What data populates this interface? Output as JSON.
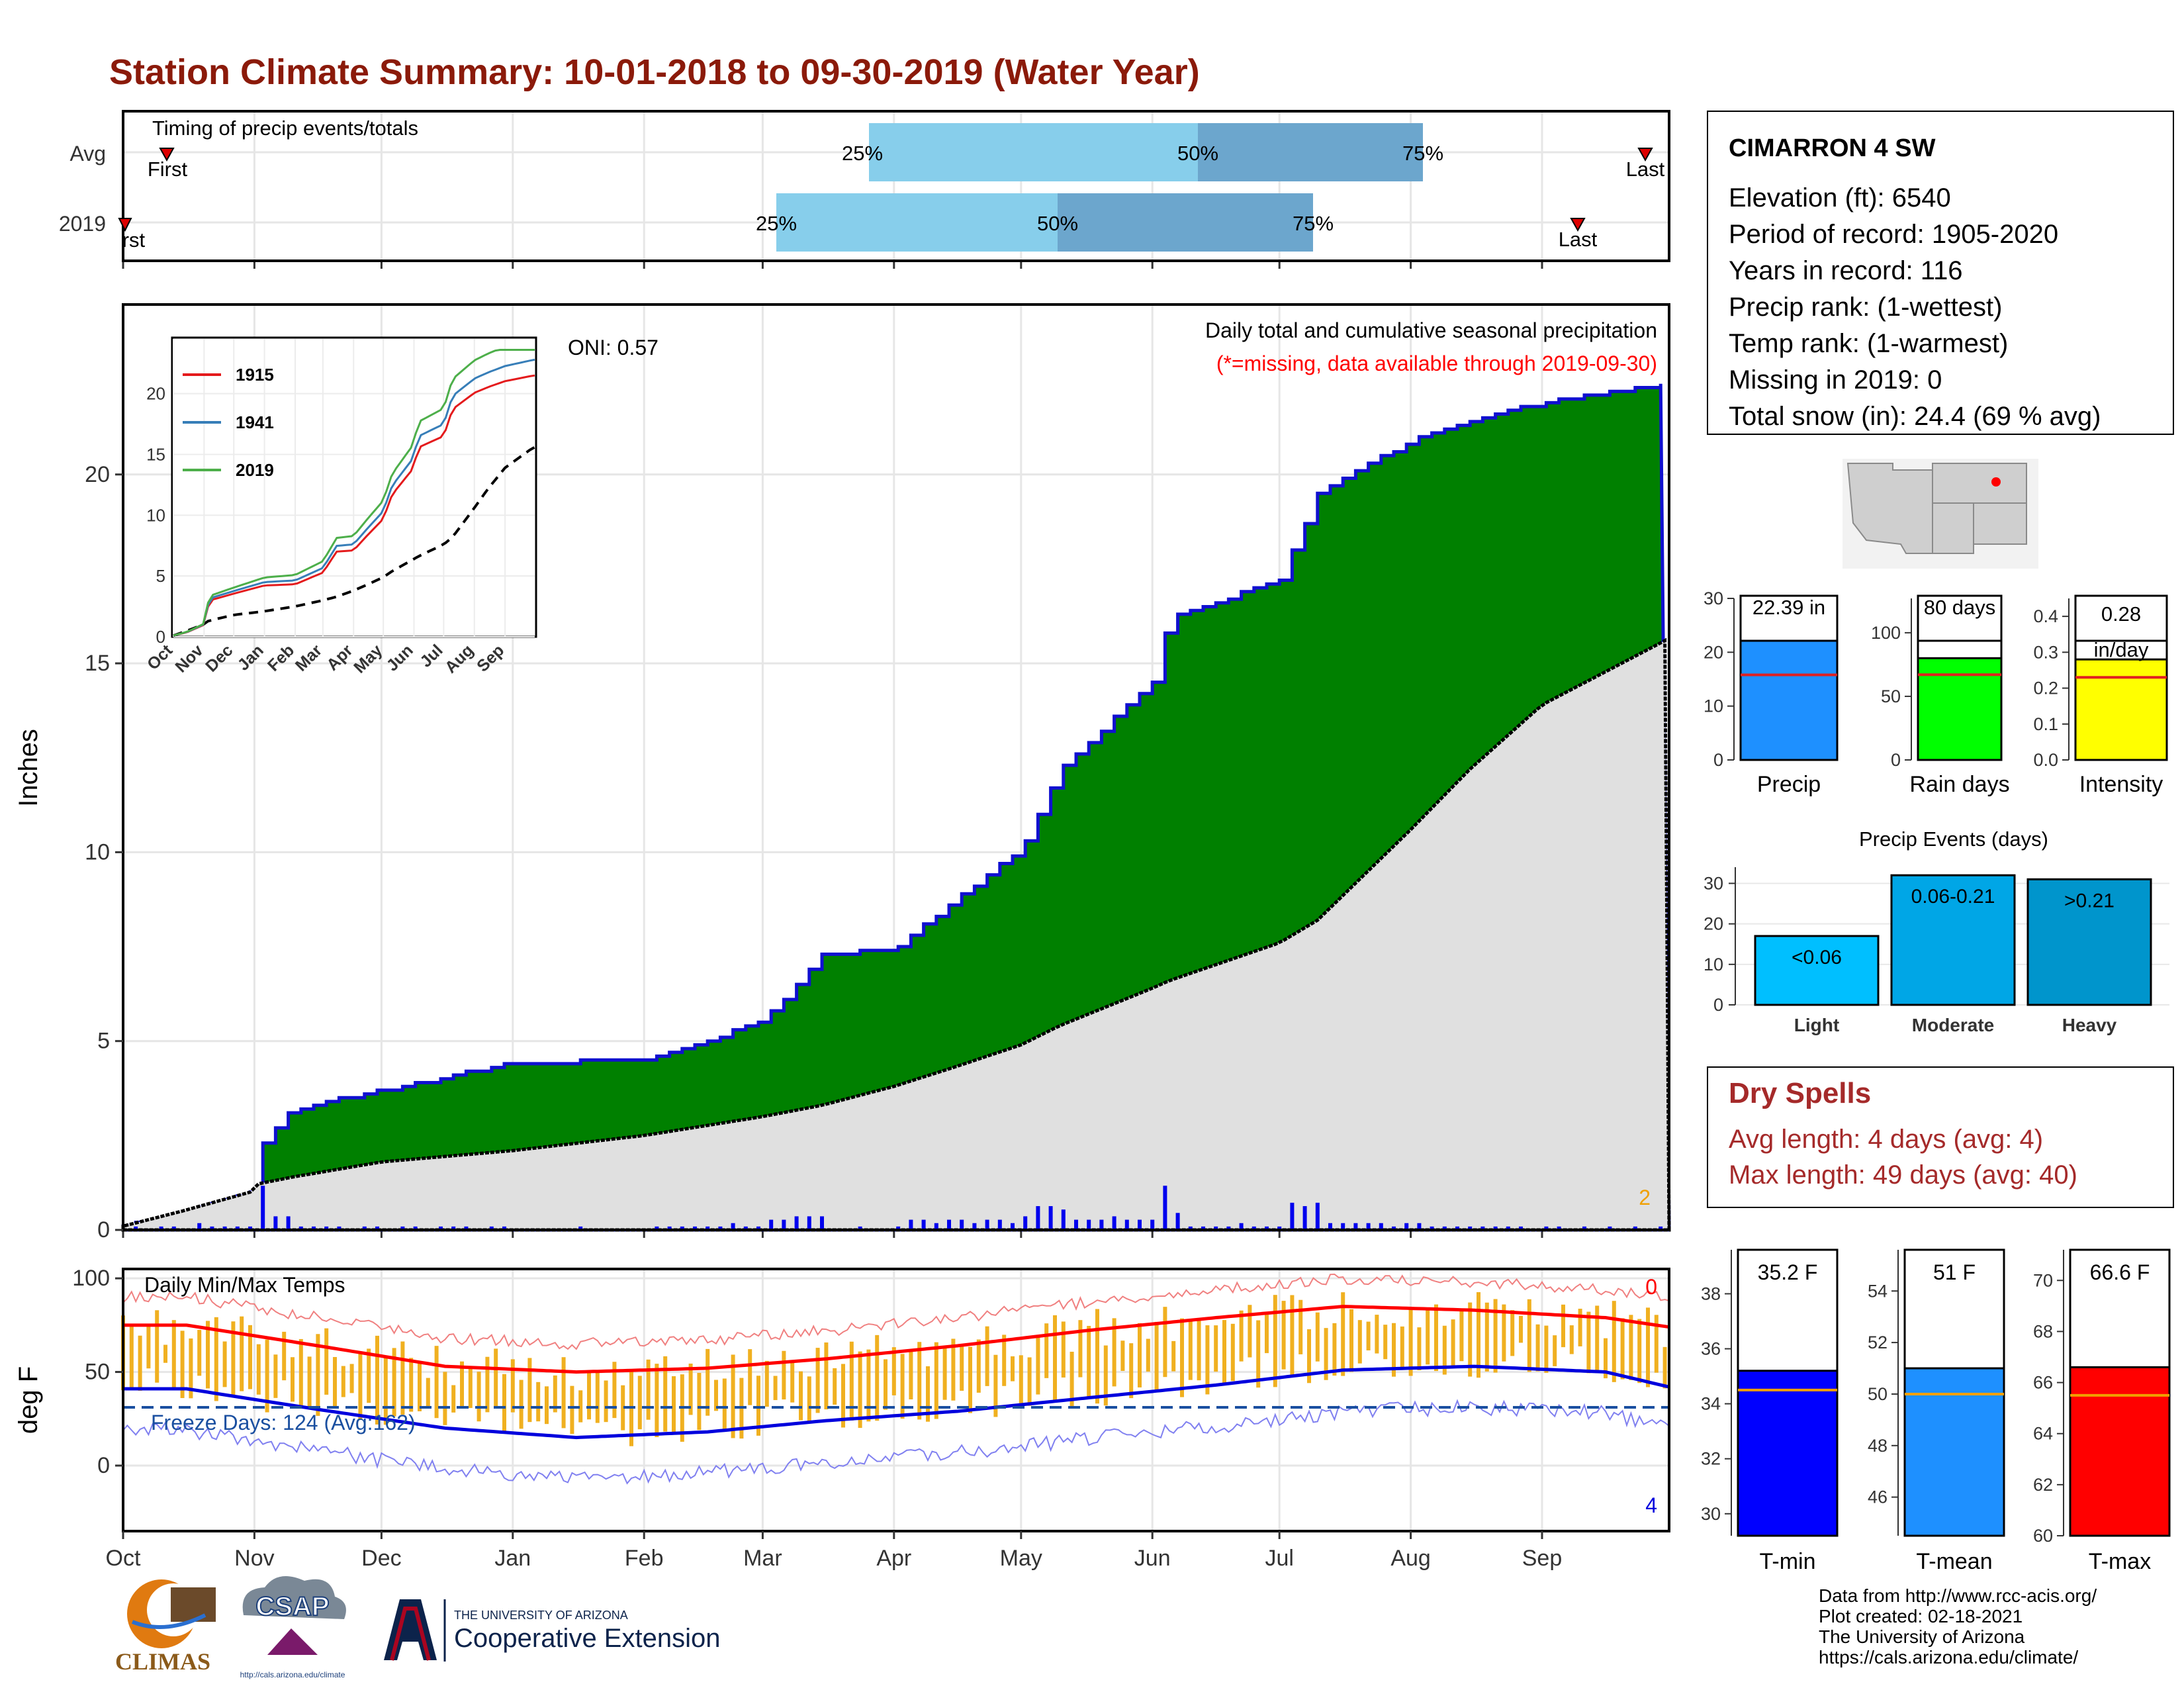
{
  "title": "Station Climate Summary: 10-01-2018 to 09-30-2019 (Water Year)",
  "months": [
    "Oct",
    "Nov",
    "Dec",
    "Jan",
    "Feb",
    "Mar",
    "Apr",
    "May",
    "Jun",
    "Jul",
    "Aug",
    "Sep"
  ],
  "timing": {
    "label": "Timing of precip events/totals",
    "rows": [
      "Avg",
      "2019"
    ],
    "avg": {
      "first_label": "First",
      "last_label": "Last",
      "p25": "25%",
      "p50": "50%",
      "p75": "75%"
    },
    "y2019": {
      "first_label": "First",
      "last_label": "Last",
      "p25": "25%",
      "p50": "50%",
      "p75": "75%"
    }
  },
  "station": {
    "name": "CIMARRON 4 SW",
    "lines": [
      "Elevation (ft): 6540",
      "Period of record: 1905-2020",
      "Years in record: 116",
      "Precip rank:  (1-wettest)",
      "Temp rank:  (1-warmest)",
      "Missing in 2019: 0",
      "Total snow (in): 24.4 (69 % avg)"
    ]
  },
  "precip_panel": {
    "ylabel": "Inches",
    "title": "Daily total and cumulative seasonal precipitation",
    "subtitle": "(*=missing, data available through 2019-09-30)",
    "oni": "ONI: 0.57",
    "corner_count": "2",
    "yticks": [
      "0",
      "5",
      "10",
      "15",
      "20"
    ]
  },
  "inset": {
    "legend": [
      "1915",
      "1941",
      "2019"
    ],
    "colors": [
      "#e41a1c",
      "#377eb8",
      "#4daf4a"
    ],
    "yticks": [
      "0",
      "5",
      "10",
      "15",
      "20"
    ],
    "xticks": [
      "Oct",
      "Nov",
      "Dec",
      "Jan",
      "Feb",
      "Mar",
      "Apr",
      "May",
      "Jun",
      "Jul",
      "Aug",
      "Sep"
    ]
  },
  "temp_panel": {
    "ylabel": "deg F",
    "title": "Daily Min/Max Temps",
    "freeze": "Freeze Days: 124 (Avg:162)",
    "count_top": "0",
    "count_bottom": "4",
    "yticks": [
      "0",
      "50",
      "100"
    ]
  },
  "bars_precip": {
    "precip": {
      "value": "22.39 in",
      "label": "Precip",
      "yticks": [
        "0",
        "10",
        "20",
        "30"
      ]
    },
    "raindays": {
      "value": "80 days",
      "label": "Rain days",
      "yticks": [
        "0",
        "50",
        "100"
      ]
    },
    "intensity": {
      "value": "0.28",
      "unit": "in/day",
      "label": "Intensity",
      "yticks": [
        "0.0",
        "0.1",
        "0.2",
        "0.3",
        "0.4"
      ]
    }
  },
  "events": {
    "title": "Precip Events (days)",
    "bars": [
      {
        "label": "Light",
        "value_label": "<0.06"
      },
      {
        "label": "Moderate",
        "value_label": "0.06-0.21"
      },
      {
        "label": "Heavy",
        "value_label": ">0.21"
      }
    ],
    "yticks": [
      "0",
      "10",
      "20",
      "30"
    ]
  },
  "dry_spells": {
    "title": "Dry Spells",
    "avg": "Avg length: 4 days (avg: 4)",
    "max": "Max length: 49 days (avg: 40)"
  },
  "temp_bars": {
    "tmin": {
      "value": "35.2 F",
      "label": "T-min",
      "yticks": [
        "30",
        "32",
        "34",
        "36",
        "38"
      ]
    },
    "tmean": {
      "value": "51 F",
      "label": "T-mean",
      "yticks": [
        "46",
        "48",
        "50",
        "52",
        "54"
      ]
    },
    "tmax": {
      "value": "66.6 F",
      "label": "T-max",
      "yticks": [
        "60",
        "62",
        "64",
        "66",
        "68",
        "70"
      ]
    }
  },
  "credits": [
    "Data from http://www.rcc-acis.org/",
    "Plot created: 02-18-2021",
    "The University of Arizona",
    "https://cals.arizona.edu/climate/"
  ],
  "logos": {
    "climas": "CLIMAS",
    "csap": "CSAP",
    "csap_url": "http://cals.arizona.edu/climate",
    "ua_line1": "THE UNIVERSITY OF ARIZONA",
    "ua_line2": "Cooperative Extension"
  },
  "colors": {
    "title": "#8b1a0a",
    "green": "#008000",
    "blue": "#0000ff",
    "red": "#ff0000",
    "gold": "#f0b020",
    "dry": "#a52a2a"
  },
  "chart_data": [
    {
      "type": "area",
      "name": "cumulative precipitation",
      "ylabel": "Inches",
      "ylim": [
        0,
        24.5
      ],
      "x": [
        "Oct 1",
        "Oct 15",
        "Oct 31",
        "Nov 1",
        "Nov 10",
        "Dec 1",
        "Jan 1",
        "Feb 1",
        "Mar 1",
        "Mar 15",
        "Apr 1",
        "Apr 15",
        "May 1",
        "May 10",
        "Jun 1",
        "Jun 5",
        "Jul 1",
        "Jul 10",
        "Aug 1",
        "Aug 15",
        "Sep 1",
        "Sep 30"
      ],
      "series": [
        {
          "name": "2019",
          "values": [
            0.1,
            0.4,
            1.0,
            2.1,
            3.2,
            3.7,
            4.4,
            4.5,
            5.5,
            7.3,
            7.4,
            8.7,
            10.1,
            12.2,
            14.5,
            16.2,
            17.2,
            19.5,
            20.9,
            21.4,
            21.9,
            22.39
          ]
        },
        {
          "name": "Avg",
          "values": [
            0.1,
            0.5,
            1.0,
            1.2,
            1.4,
            1.8,
            2.1,
            2.5,
            3.0,
            3.3,
            3.8,
            4.3,
            4.9,
            5.4,
            6.4,
            6.6,
            7.6,
            8.2,
            10.6,
            12.2,
            13.9,
            15.6
          ]
        }
      ]
    },
    {
      "type": "bar",
      "name": "annual bars",
      "categories": [
        "Precip",
        "Rain days",
        "Intensity"
      ],
      "values": [
        22.39,
        80,
        0.28
      ],
      "averages": [
        15.8,
        67,
        0.23
      ]
    },
    {
      "type": "bar",
      "name": "Precip Events (days)",
      "categories": [
        "Light",
        "Moderate",
        "Heavy"
      ],
      "values": [
        17,
        32,
        31
      ]
    },
    {
      "type": "bar",
      "name": "temperature bars",
      "categories": [
        "T-min",
        "T-mean",
        "T-max"
      ],
      "values": [
        35.2,
        51,
        66.6
      ],
      "averages": [
        34.5,
        50,
        65.5
      ]
    },
    {
      "type": "line",
      "name": "Daily Min/Max Temps",
      "ylim": [
        -35,
        105
      ],
      "x": [
        "Oct",
        "Nov",
        "Dec",
        "Jan",
        "Feb",
        "Mar",
        "Apr",
        "May",
        "Jun",
        "Jul",
        "Aug",
        "Sep",
        "Sep 30"
      ],
      "series": [
        {
          "name": "avg max",
          "values": [
            75,
            64,
            53,
            50,
            52,
            57,
            64,
            72,
            79,
            85,
            83,
            79,
            74
          ]
        },
        {
          "name": "avg min",
          "values": [
            41,
            30,
            20,
            15,
            18,
            24,
            29,
            36,
            43,
            51,
            53,
            50,
            42
          ]
        }
      ]
    }
  ]
}
